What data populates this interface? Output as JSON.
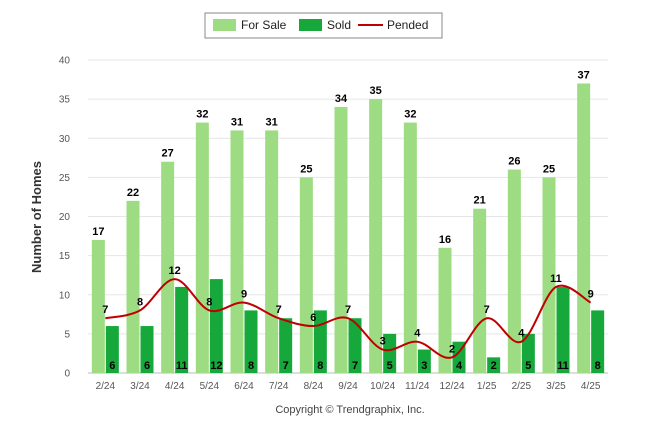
{
  "chart_data": {
    "type": "bar",
    "categories": [
      "2/24",
      "3/24",
      "4/24",
      "5/24",
      "6/24",
      "7/24",
      "8/24",
      "9/24",
      "10/24",
      "11/24",
      "12/24",
      "1/25",
      "2/25",
      "3/25",
      "4/25"
    ],
    "series": [
      {
        "name": "For Sale",
        "type": "bar",
        "color": "#9ddc82",
        "values": [
          17,
          22,
          27,
          32,
          31,
          31,
          25,
          34,
          35,
          32,
          16,
          21,
          26,
          25,
          37
        ]
      },
      {
        "name": "Sold",
        "type": "bar",
        "color": "#16a83a",
        "values": [
          6,
          6,
          11,
          12,
          8,
          7,
          8,
          7,
          5,
          3,
          4,
          2,
          5,
          11,
          8
        ]
      },
      {
        "name": "Pended",
        "type": "line",
        "color": "#c00000",
        "values": [
          7,
          8,
          12,
          8,
          9,
          7,
          6,
          7,
          3,
          4,
          2,
          7,
          4,
          11,
          9
        ]
      }
    ],
    "ylabel": "Number of Homes",
    "xlabel": "",
    "ylim": [
      0,
      40
    ],
    "yticks": [
      0,
      5,
      10,
      15,
      20,
      25,
      30,
      35,
      40
    ],
    "grid": true,
    "legend_position": "top-center",
    "footer": "Copyright © Trendgraphix, Inc."
  }
}
